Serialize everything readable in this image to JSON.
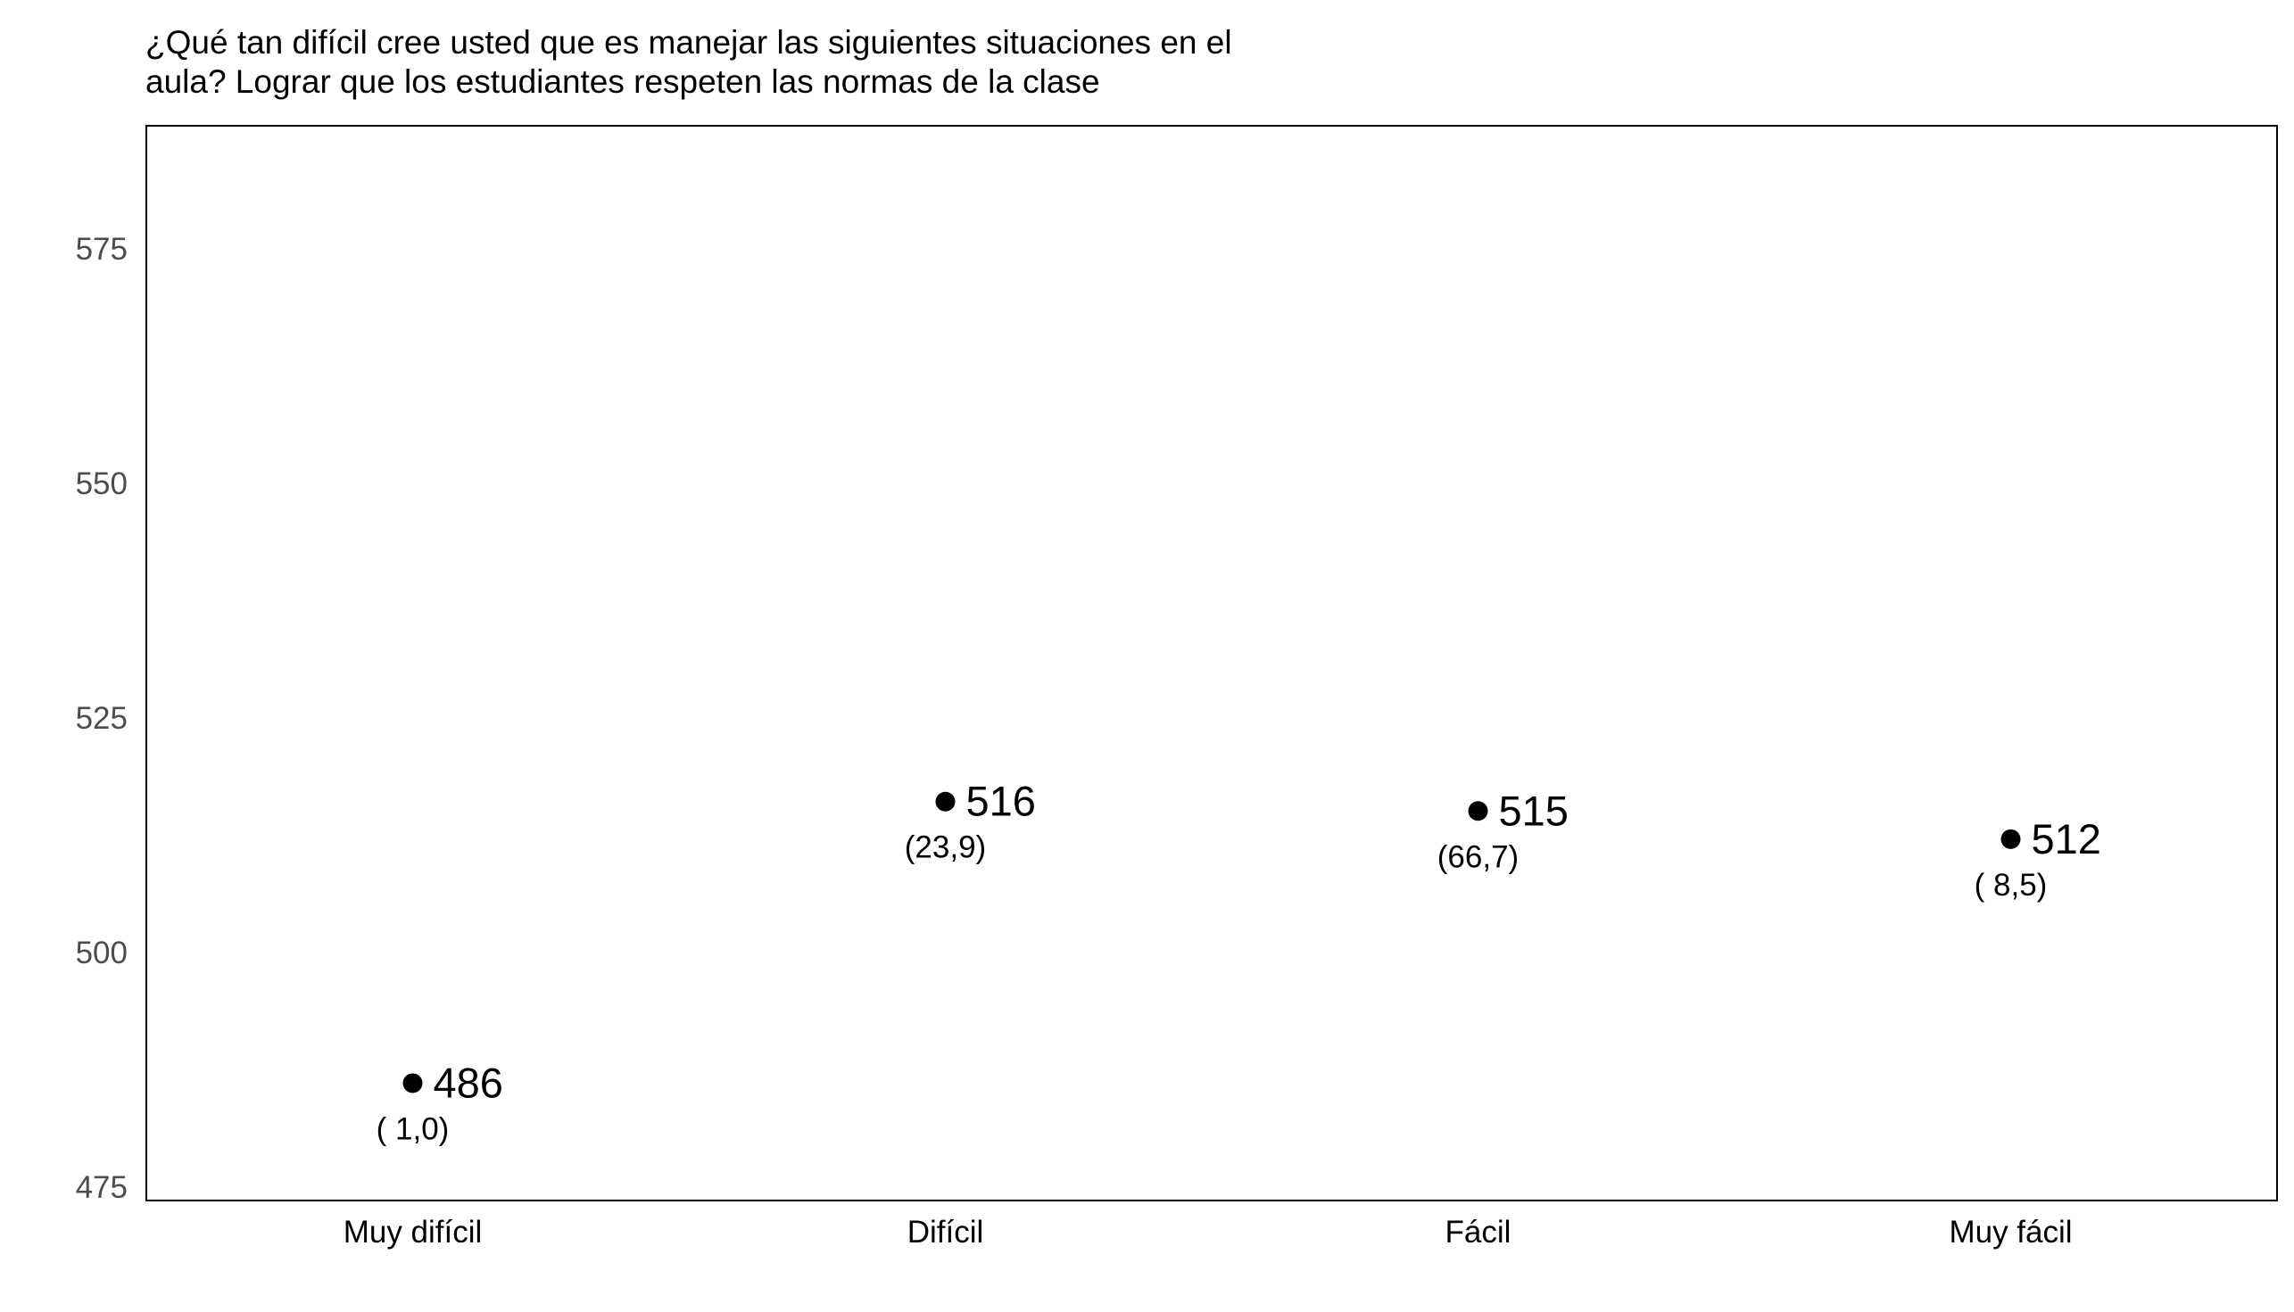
{
  "chart_data": {
    "type": "scatter",
    "title_lines": [
      "¿Qué tan difícil cree usted que es manejar las siguientes situaciones en el",
      "aula? Lograr que los estudiantes respeten las normas de la clase"
    ],
    "xlabel": "",
    "ylabel": "",
    "categories": [
      "Muy difícil",
      "Difícil",
      "Fácil",
      "Muy fácil"
    ],
    "values": [
      486,
      516,
      515,
      512
    ],
    "value_labels": [
      "486",
      "516",
      "515",
      "512"
    ],
    "percent_labels": [
      "( 1,0)",
      "(23,9)",
      "(66,7)",
      "( 8,5)"
    ],
    "ylim": [
      473.5,
      588
    ],
    "yticks": [
      475,
      500,
      525,
      550,
      575
    ],
    "grid": false,
    "legend": "none",
    "point_color": "#000000",
    "tick_label_color": "#4d4d4d"
  }
}
